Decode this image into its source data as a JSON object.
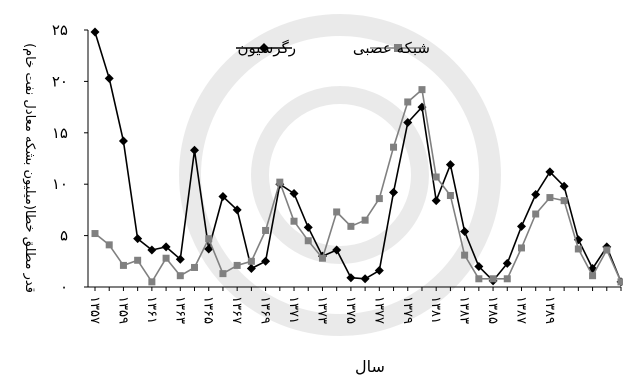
{
  "chart_data": {
    "type": "line",
    "title": "",
    "xlabel": "سال",
    "ylabel": "قدر مطلق خطا(میلیون بشکه معادل نفت خام)",
    "ylim": [
      0,
      25
    ],
    "yticks": [
      0,
      5,
      10,
      15,
      20,
      25
    ],
    "ytick_labels": [
      "۰",
      "۵",
      "۱۰",
      "۱۵",
      "۲۰",
      "۲۵"
    ],
    "xtick_labels": [
      "۱۳۵۷",
      "۱۳۵۹",
      "۱۳۶۱",
      "۱۳۶۳",
      "۱۳۶۵",
      "۱۳۶۷",
      "۱۳۶۹",
      "۱۳۷۱",
      "۱۳۷۳",
      "۱۳۷۵",
      "۱۳۷۷",
      "۱۳۷۹",
      "۱۳۸۱",
      "۱۳۸۳",
      "۱۳۸۵",
      "۱۳۸۷",
      "۱۳۸۹"
    ],
    "grid": false,
    "legend_position": "top-right",
    "series": [
      {
        "name": "رگرسیون",
        "color": "#000000",
        "marker": "diamond",
        "values": [
          24.8,
          20.3,
          14.2,
          4.7,
          3.6,
          3.9,
          2.7,
          13.3,
          3.7,
          8.8,
          7.5,
          1.8,
          2.5,
          10.0,
          9.1,
          5.8,
          3.0,
          3.6,
          0.9,
          0.8,
          1.6,
          9.2,
          16.0,
          17.5,
          8.4,
          11.9,
          5.4,
          2.0,
          0.6,
          2.3,
          5.9,
          9.0,
          11.2,
          9.8,
          4.6,
          1.8,
          3.9,
          0.5
        ]
      },
      {
        "name": "شبکه عصبی",
        "color": "#808080",
        "marker": "square",
        "values": [
          5.2,
          4.1,
          2.1,
          2.6,
          0.5,
          2.8,
          1.1,
          1.9,
          4.7,
          1.3,
          2.1,
          2.5,
          5.5,
          10.2,
          6.4,
          4.5,
          2.8,
          7.3,
          5.9,
          6.5,
          8.6,
          13.6,
          18.0,
          19.2,
          10.7,
          8.9,
          3.1,
          0.8,
          0.8,
          0.8,
          3.8,
          7.1,
          8.7,
          8.4,
          3.7,
          1.1,
          3.6,
          0.5
        ]
      }
    ]
  }
}
